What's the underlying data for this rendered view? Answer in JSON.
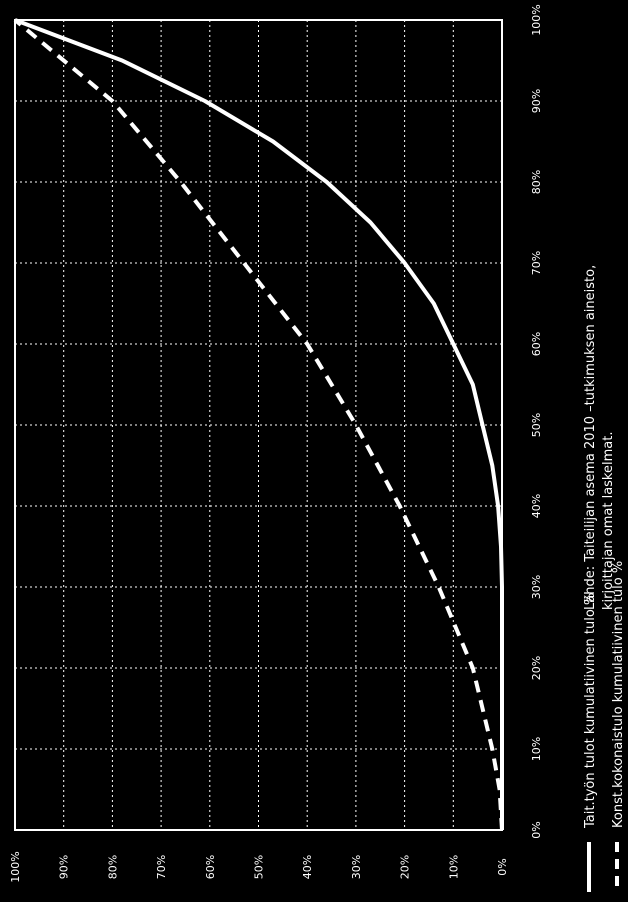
{
  "chart_data": {
    "type": "line",
    "orientation": "rotated-90-ccw",
    "x_ticks": [
      "0%",
      "10%",
      "20%",
      "30%",
      "40%",
      "50%",
      "60%",
      "70%",
      "80%",
      "90%",
      "100%"
    ],
    "y_ticks": [
      "0%",
      "10%",
      "20%",
      "30%",
      "40%",
      "50%",
      "60%",
      "70%",
      "80%",
      "90%",
      "100%"
    ],
    "xlim": [
      0,
      100
    ],
    "ylim": [
      0,
      100
    ],
    "grid": true,
    "legend_position": "bottom",
    "series": [
      {
        "name": "Tait.työn tulot kumulatiivinen tulo %",
        "style": "solid",
        "color": "#ffffff",
        "x": [
          0,
          10,
          20,
          30,
          35,
          40,
          45,
          50,
          55,
          60,
          65,
          70,
          75,
          80,
          85,
          90,
          95,
          100
        ],
        "y": [
          0,
          0,
          0,
          0,
          0.2,
          0.8,
          2,
          4,
          6,
          10,
          14,
          20,
          27,
          36,
          47,
          61,
          78,
          100
        ]
      },
      {
        "name": "Konst.kokonaistulo kumulatiivinen tulo %",
        "style": "dashed",
        "color": "#ffffff",
        "x": [
          0,
          5,
          10,
          20,
          30,
          40,
          50,
          60,
          70,
          80,
          90,
          100
        ],
        "y": [
          0,
          0.5,
          2,
          6,
          13,
          21,
          30,
          40,
          53,
          66,
          80,
          100
        ]
      }
    ],
    "source_lines": [
      "Lähde: Taiteilijan asema 2010 –tutkimuksen aineisto,",
      "kirjoittajan omat laskelmat."
    ]
  }
}
